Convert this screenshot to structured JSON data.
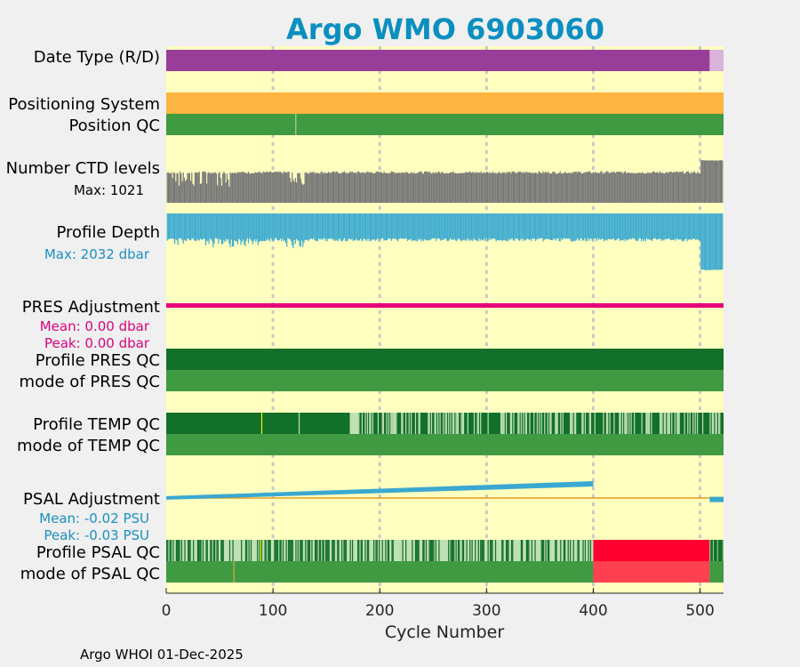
{
  "colors": {
    "background": "#f0f0f0",
    "plot_bg": "#ffffc0",
    "title": "#0b8fc0",
    "date_delayed": "#983e98",
    "date_realtime": "#d9b3d9",
    "positioning": "#fdb440",
    "qc_good": "#3f9a42",
    "qc_dark": "#137029",
    "qc_light": "#c0e0b5",
    "qc_yellow": "#f0f010",
    "qc_bad_red": "#ff0030",
    "qc_bad_light": "#ff4050",
    "ctd_gray": "#787878",
    "depth_blue": "#40acd0",
    "pres_adj": "#e8007c",
    "psal_adj": "#3aa8d0",
    "zero_line": "#e0a020",
    "depth_label": "#1a8fc8",
    "pres_label": "#e0007c",
    "psal_label": "#1a8fc8",
    "grid": "#c8c8c8"
  },
  "chart_data": {
    "type": "status_timeline",
    "title": "Argo WMO 6903060",
    "xlabel": "Cycle Number",
    "xlim": [
      0,
      522
    ],
    "xticks": [
      0,
      100,
      200,
      300,
      400,
      500
    ],
    "xtick_labels": [
      "0",
      "100",
      "200",
      "300",
      "400",
      "500"
    ],
    "grid": "vertical dashed at x ticks",
    "rows": [
      {
        "name": "date_type",
        "label": "Date Type (R/D)",
        "segments": [
          {
            "from": 0,
            "to": 509,
            "value": "D"
          },
          {
            "from": 509,
            "to": 522,
            "value": "R"
          }
        ]
      },
      {
        "name": "positioning_system",
        "label": "Positioning System",
        "segments": [
          {
            "from": 0,
            "to": 522,
            "value": "GPS"
          }
        ]
      },
      {
        "name": "position_qc",
        "label": "Position QC",
        "segments": [
          {
            "from": 0,
            "to": 522,
            "value": "1"
          }
        ],
        "marks": [
          {
            "cycle": 121,
            "value": "light"
          }
        ]
      },
      {
        "name": "ctd_levels",
        "label": "Number CTD levels",
        "max_text": "Max: 1021",
        "max": 1021,
        "typical": 740,
        "late_cycles_from": 501,
        "late_value": 1021
      },
      {
        "name": "profile_depth",
        "label": "Profile Depth",
        "max_text": "Max: 2032 dbar",
        "max": 2032,
        "typical": 1000,
        "late_cycles_from": 501,
        "late_value": 2032
      },
      {
        "name": "pres_adjustment",
        "label": "PRES Adjustment",
        "mean_text": "Mean: 0.00 dbar",
        "peak_text": "Peak: 0.00 dbar",
        "mean": 0.0,
        "peak": 0.0
      },
      {
        "name": "profile_pres_qc",
        "label": "Profile PRES QC",
        "segments": [
          {
            "from": 0,
            "to": 522,
            "value": "A"
          }
        ]
      },
      {
        "name": "mode_pres_qc",
        "label": "mode of PRES QC",
        "segments": [
          {
            "from": 0,
            "to": 522,
            "value": "1"
          }
        ]
      },
      {
        "name": "profile_temp_qc",
        "label": "Profile TEMP QC",
        "segments": [
          {
            "from": 0,
            "to": 172,
            "value": "A"
          },
          {
            "from": 172,
            "to": 522,
            "value": "mixed A/B"
          }
        ],
        "marks": [
          {
            "cycle": 89,
            "value": "yellow"
          },
          {
            "cycle": 124,
            "value": "light"
          }
        ]
      },
      {
        "name": "mode_temp_qc",
        "label": "mode of TEMP QC",
        "segments": [
          {
            "from": 0,
            "to": 522,
            "value": "1"
          }
        ]
      },
      {
        "name": "psal_adjustment",
        "label": "PSAL Adjustment",
        "mean_text": "Mean: -0.02 PSU",
        "peak_text": "Peak: -0.03 PSU",
        "mean": -0.02,
        "peak": -0.03,
        "trend": [
          {
            "cycle": 0,
            "value": -0.002
          },
          {
            "cycle": 400,
            "value": -0.03
          },
          {
            "cycle": 512,
            "value": 0.003
          }
        ]
      },
      {
        "name": "profile_psal_qc",
        "label": "Profile PSAL QC",
        "segments": [
          {
            "from": 0,
            "to": 400,
            "value": "mixed A/B"
          },
          {
            "from": 400,
            "to": 509,
            "value": "F"
          },
          {
            "from": 509,
            "to": 522,
            "value": "mixed A/B"
          }
        ],
        "marks": [
          {
            "cycle": 88,
            "value": "yellow"
          }
        ]
      },
      {
        "name": "mode_psal_qc",
        "label": "mode of PSAL QC",
        "segments": [
          {
            "from": 0,
            "to": 400,
            "value": "1"
          },
          {
            "from": 400,
            "to": 509,
            "value": "4"
          },
          {
            "from": 509,
            "to": 522,
            "value": "1"
          }
        ],
        "marks": [
          {
            "cycle": 63,
            "value": "yellow"
          }
        ]
      }
    ]
  },
  "footer": "Argo WHOI 01-Dec-2025"
}
